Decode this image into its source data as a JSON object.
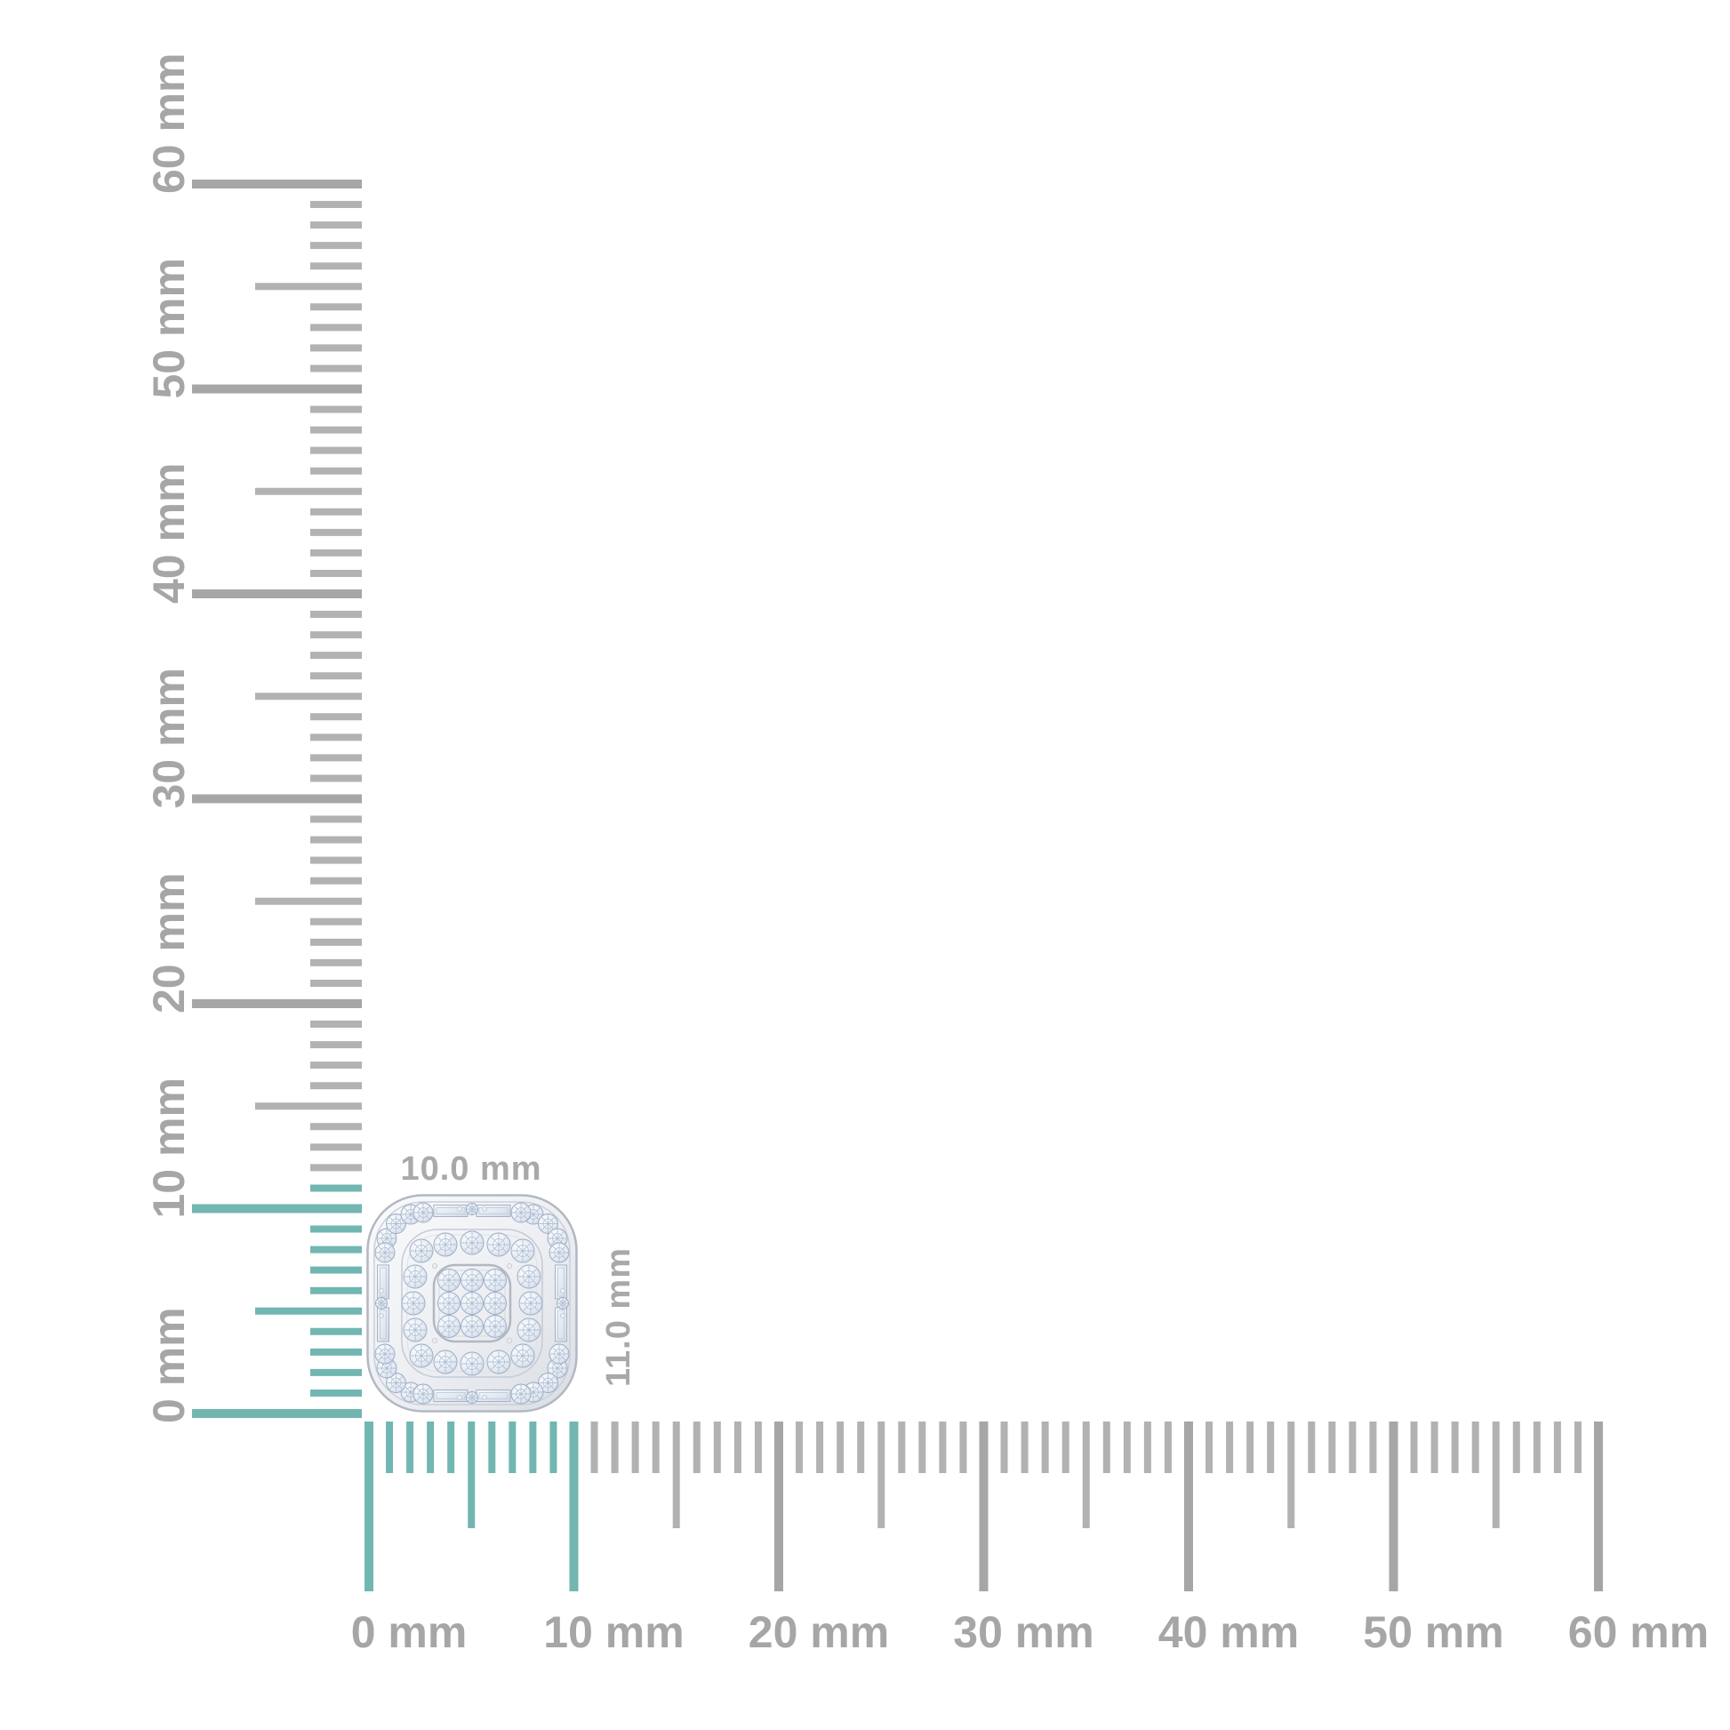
{
  "diagram": {
    "kind": "product-measurement-diagram",
    "unit": "mm"
  },
  "rulers": {
    "vertical": {
      "unit": "mm",
      "min": 0,
      "max": 60,
      "label_every": 10,
      "labels": [
        "0 mm",
        "10 mm",
        "20 mm",
        "30 mm",
        "40 mm",
        "50 mm",
        "60 mm"
      ],
      "highlighted_span_mm": 11
    },
    "horizontal": {
      "unit": "mm",
      "min": 0,
      "max": 60,
      "label_every": 10,
      "labels": [
        "0 mm",
        "10 mm",
        "20 mm",
        "30 mm",
        "40 mm",
        "50 mm",
        "60 mm"
      ],
      "highlighted_span_mm": 10
    }
  },
  "item": {
    "name": "cushion-shaped diamond cluster stud",
    "width_label": "10.0 mm",
    "height_label": "11.0 mm"
  },
  "colors": {
    "background": "#ffffff",
    "highlight_teal": "#72b6b2",
    "tick_gray": "#b2b2b2",
    "major_tick_gray": "#a6a6a6",
    "ruler_label_gray": "#a6a6a6",
    "dimension_label_gray": "#a9a9a9",
    "metal_light": "#f8f9fb",
    "metal_dark": "#d9dde3",
    "diamond_edge": "#b7c3d6"
  }
}
